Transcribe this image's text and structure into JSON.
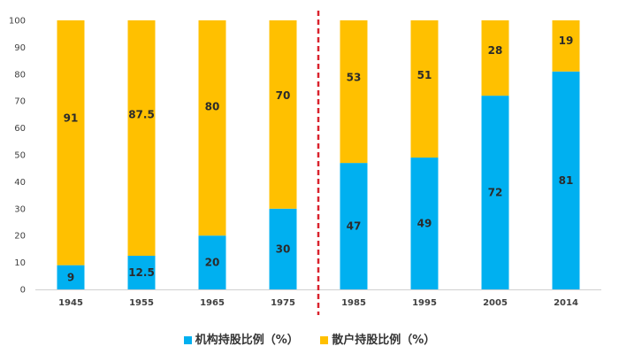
{
  "chart_data": {
    "type": "bar",
    "stacked": true,
    "categories": [
      "1945",
      "1955",
      "1965",
      "1975",
      "1985",
      "1995",
      "2005",
      "2014"
    ],
    "series": [
      {
        "name": "机构持股比例（%）",
        "color": "#00B0F0",
        "values": [
          9,
          12.5,
          20,
          30,
          47,
          49,
          72,
          81
        ]
      },
      {
        "name": "散户持股比例（%）",
        "color": "#FFC000",
        "values": [
          91,
          87.5,
          80,
          70,
          53,
          51,
          28,
          19
        ]
      }
    ],
    "ylim": [
      0,
      100
    ],
    "yticks": [
      0,
      10,
      20,
      30,
      40,
      50,
      60,
      70,
      80,
      90,
      100
    ],
    "divider_after_category_index": 3,
    "divider_color": "#D9232E",
    "title": "",
    "xlabel": "",
    "ylabel": ""
  }
}
